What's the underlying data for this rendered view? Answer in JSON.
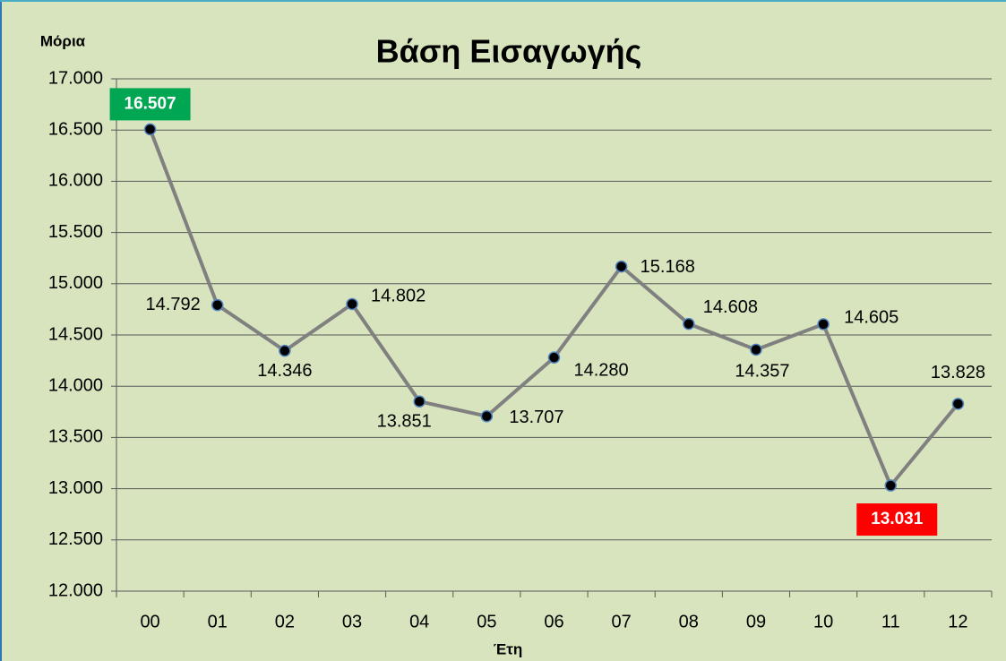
{
  "chart_data": {
    "type": "line",
    "title": "Βάση Εισαγωγής",
    "y_label": "Μόρια",
    "x_label": "Έτη",
    "categories": [
      "00",
      "01",
      "02",
      "03",
      "04",
      "05",
      "06",
      "07",
      "08",
      "09",
      "10",
      "11",
      "12"
    ],
    "values": [
      16507,
      14792,
      14346,
      14802,
      13851,
      13707,
      14280,
      15168,
      14608,
      14357,
      14605,
      13031,
      13828
    ],
    "value_labels": [
      "16.507",
      "14.792",
      "14.346",
      "14.802",
      "13.851",
      "13.707",
      "14.280",
      "15.168",
      "14.608",
      "14.357",
      "14.605",
      "13.031",
      "13.828"
    ],
    "color": "#808080",
    "marker_color": "#000000",
    "max_label_color": "#00a651",
    "min_label_color": "#ff0000",
    "ylim": [
      12000,
      17000
    ],
    "yticks": [
      {
        "value": 12000,
        "label": "12.000"
      },
      {
        "value": 12500,
        "label": "12.500"
      },
      {
        "value": 13000,
        "label": "13.000"
      },
      {
        "value": 13500,
        "label": "13.500"
      },
      {
        "value": 14000,
        "label": "14.000"
      },
      {
        "value": 14500,
        "label": "14.500"
      },
      {
        "value": 15000,
        "label": "15.000"
      },
      {
        "value": 15500,
        "label": "15.500"
      },
      {
        "value": 16000,
        "label": "16.000"
      },
      {
        "value": 16500,
        "label": "16.500"
      },
      {
        "value": 17000,
        "label": "17.000"
      }
    ],
    "grid": true
  }
}
